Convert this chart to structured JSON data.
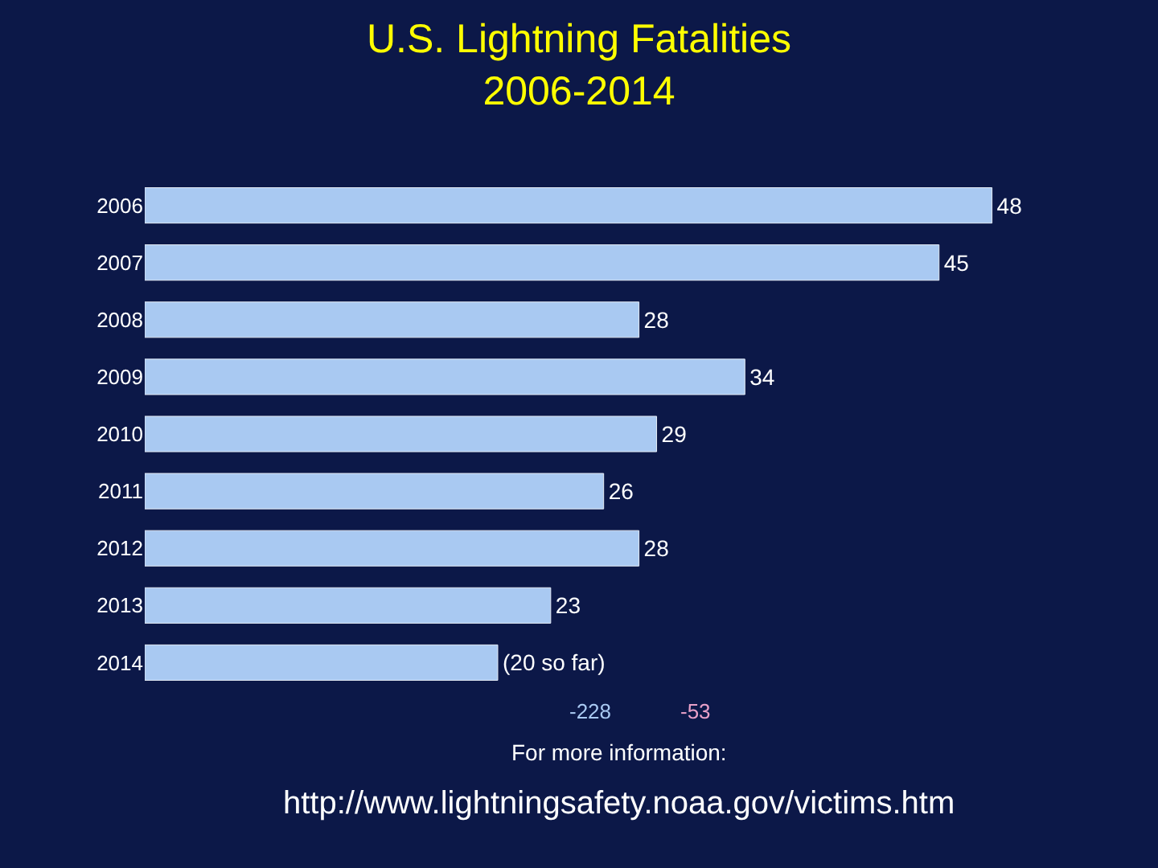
{
  "chart_data": {
    "type": "bar",
    "orientation": "horizontal",
    "title": "U.S. Lightning Fatalities\n2006-2014",
    "categories": [
      "2006",
      "2007",
      "2008",
      "2009",
      "2010",
      "2011",
      "2012",
      "2013",
      "2014"
    ],
    "values": [
      48,
      45,
      28,
      34,
      29,
      26,
      28,
      23,
      20
    ],
    "value_labels": [
      "48",
      "45",
      "28",
      "34",
      "29",
      "26",
      "28",
      "23",
      "(20 so far)"
    ],
    "color": "#a9c9f2",
    "tick_labels": "y",
    "grid": false,
    "legend": false,
    "annotations": [
      "-228",
      "-53",
      "For more information:",
      "http://www.lightningsafety.noaa.gov/victims.htm"
    ]
  }
}
